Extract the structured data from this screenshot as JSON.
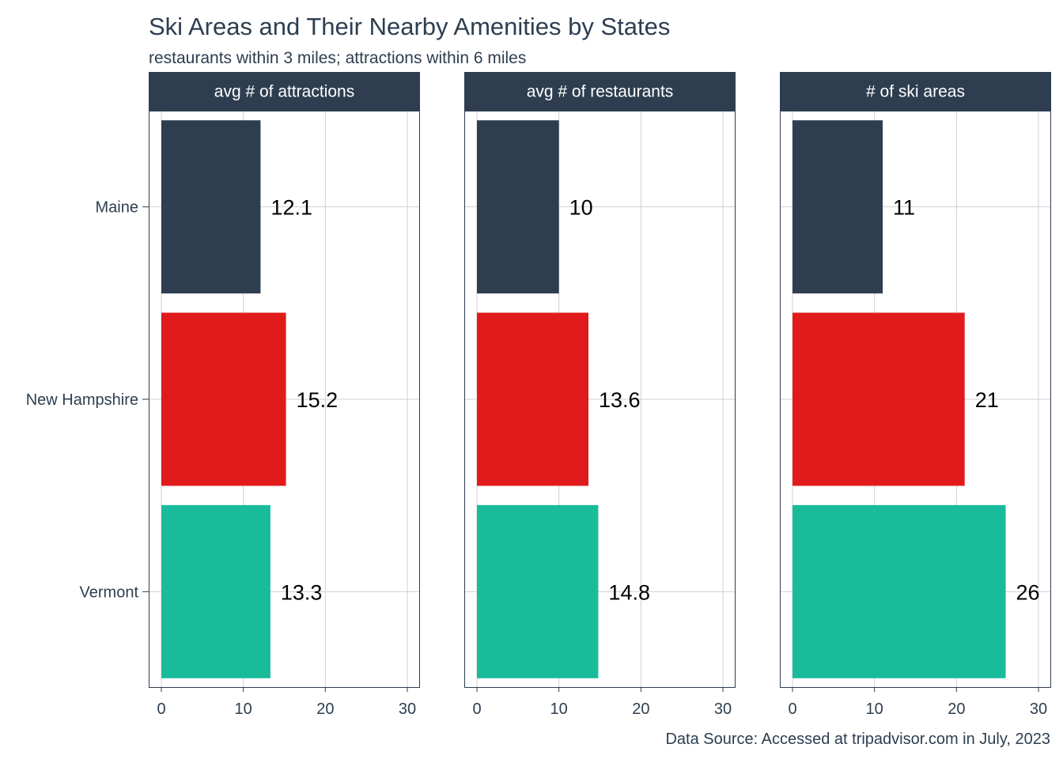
{
  "chart_data": {
    "type": "bar",
    "orientation": "horizontal",
    "title": "Ski Areas and Their Nearby Amenities by States",
    "subtitle": "restaurants within 3 miles; attractions within 6 miles",
    "caption": "Data Source: Accessed at tripadvisor.com in July, 2023",
    "categories": [
      "Maine",
      "New Hampshire",
      "Vermont"
    ],
    "colors": {
      "Maine": "#2e3e50",
      "New Hampshire": "#e11b1b",
      "Vermont": "#19bb9b"
    },
    "theme": {
      "text": "#2e3e50",
      "strip_background": "#2e3e50",
      "strip_text": "#ffffff",
      "grid": "#d0d0d0",
      "panel_border": "#2e3e50",
      "label": "#000000"
    },
    "xlim": [
      0,
      30
    ],
    "xticks": [
      0,
      10,
      20,
      30
    ],
    "grid": true,
    "panels": [
      {
        "title": "avg # of attractions",
        "values": [
          12.1,
          15.2,
          13.3
        ],
        "labels": [
          "12.1",
          "15.2",
          "13.3"
        ]
      },
      {
        "title": "avg # of restaurants",
        "values": [
          10,
          13.6,
          14.8
        ],
        "labels": [
          "10",
          "13.6",
          "14.8"
        ]
      },
      {
        "title": "# of ski areas",
        "values": [
          11,
          21,
          26
        ],
        "labels": [
          "11",
          "21",
          "26"
        ]
      }
    ]
  }
}
